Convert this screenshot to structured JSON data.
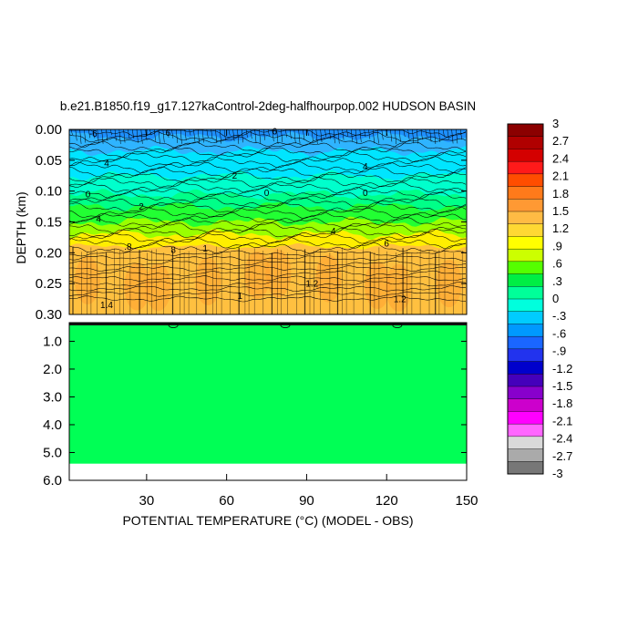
{
  "chart_data": {
    "type": "contour",
    "title": "b.e21.B1850.f19_g17.127kaControl-2deg-halfhourpop.002 HUDSON BASIN",
    "xlabel": "POTENTIAL TEMPERATURE (°C) (MODEL - OBS)",
    "ylabel": "DEPTH (km)",
    "xlim": [
      1,
      150
    ],
    "x_ticks": [
      "30",
      "60",
      "90",
      "120",
      "150"
    ],
    "x_tick_values": [
      30,
      60,
      90,
      120,
      150
    ],
    "top_panel": {
      "ylim": [
        0.0,
        0.3
      ],
      "y_ticks": [
        "0.00",
        "0.05",
        "0.10",
        "0.15",
        "0.20",
        "0.25",
        "0.30"
      ],
      "y_tick_values": [
        0.0,
        0.05,
        0.1,
        0.15,
        0.2,
        0.25,
        0.3
      ],
      "bands": [
        {
          "from": 0.0,
          "to": 0.012,
          "color": "#1e90ff"
        },
        {
          "from": 0.012,
          "to": 0.035,
          "color": "#2fb4ff"
        },
        {
          "from": 0.035,
          "to": 0.075,
          "color": "#00e5ff"
        },
        {
          "from": 0.075,
          "to": 0.105,
          "color": "#00ffcc"
        },
        {
          "from": 0.105,
          "to": 0.125,
          "color": "#00ff88"
        },
        {
          "from": 0.125,
          "to": 0.15,
          "color": "#22ff33"
        },
        {
          "from": 0.15,
          "to": 0.17,
          "color": "#99ff00"
        },
        {
          "from": 0.17,
          "to": 0.19,
          "color": "#ffee00"
        },
        {
          "from": 0.19,
          "to": 0.3,
          "color": "#ffc040"
        }
      ],
      "contour_labels": [
        {
          "x": 10,
          "y": 0.012,
          "text": "-6"
        },
        {
          "x": 38,
          "y": 0.01,
          "text": "6"
        },
        {
          "x": 78,
          "y": 0.008,
          "text": "6"
        },
        {
          "x": 15,
          "y": 0.06,
          "text": "4"
        },
        {
          "x": 63,
          "y": 0.08,
          "text": "2"
        },
        {
          "x": 112,
          "y": 0.065,
          "text": "4"
        },
        {
          "x": 8,
          "y": 0.11,
          "text": "0"
        },
        {
          "x": 75,
          "y": 0.108,
          "text": "0"
        },
        {
          "x": 112,
          "y": 0.108,
          "text": "0"
        },
        {
          "x": 28,
          "y": 0.13,
          "text": "2"
        },
        {
          "x": 12,
          "y": 0.15,
          "text": "4"
        },
        {
          "x": 100,
          "y": 0.17,
          "text": "4"
        },
        {
          "x": 23,
          "y": 0.195,
          "text": ".8"
        },
        {
          "x": 40,
          "y": 0.2,
          "text": "8"
        },
        {
          "x": 52,
          "y": 0.198,
          "text": "1"
        },
        {
          "x": 120,
          "y": 0.19,
          "text": "6"
        },
        {
          "x": 92,
          "y": 0.255,
          "text": "1.2"
        },
        {
          "x": 125,
          "y": 0.28,
          "text": "1.2"
        },
        {
          "x": 65,
          "y": 0.275,
          "text": "1"
        },
        {
          "x": 15,
          "y": 0.29,
          "text": "1.4"
        }
      ]
    },
    "bottom_panel": {
      "ylim": [
        0.33,
        6.0
      ],
      "y_ticks": [
        "1.0",
        "2.0",
        "3.0",
        "4.0",
        "5.0",
        "6.0"
      ],
      "y_tick_values": [
        1.0,
        2.0,
        3.0,
        4.0,
        5.0,
        6.0
      ],
      "fill_color": "#00ff55",
      "data_bottom_km": 5.4
    },
    "colorbar": {
      "labels": [
        "3",
        "2.7",
        "2.4",
        "2.1",
        "1.8",
        "1.5",
        "1.2",
        ".9",
        ".6",
        ".3",
        "0",
        "-.3",
        "-.6",
        "-.9",
        "-1.2",
        "-1.5",
        "-1.8",
        "-2.1",
        "-2.4",
        "-2.7",
        "-3"
      ],
      "colors": [
        "#8b0000",
        "#b00000",
        "#d40000",
        "#ff1a1a",
        "#ff4d00",
        "#ff7a1a",
        "#ff9933",
        "#ffbb44",
        "#ffd833",
        "#ffff00",
        "#ccff00",
        "#55ff00",
        "#00ee44",
        "#00ff99",
        "#00ffdd",
        "#00ccff",
        "#0099ff",
        "#1a66ff",
        "#2233ee",
        "#0000cc",
        "#4400bb",
        "#8800cc",
        "#cc00cc",
        "#ff00ff",
        "#ff66ff",
        "#d9d9d9",
        "#aaaaaa",
        "#777777"
      ]
    }
  }
}
